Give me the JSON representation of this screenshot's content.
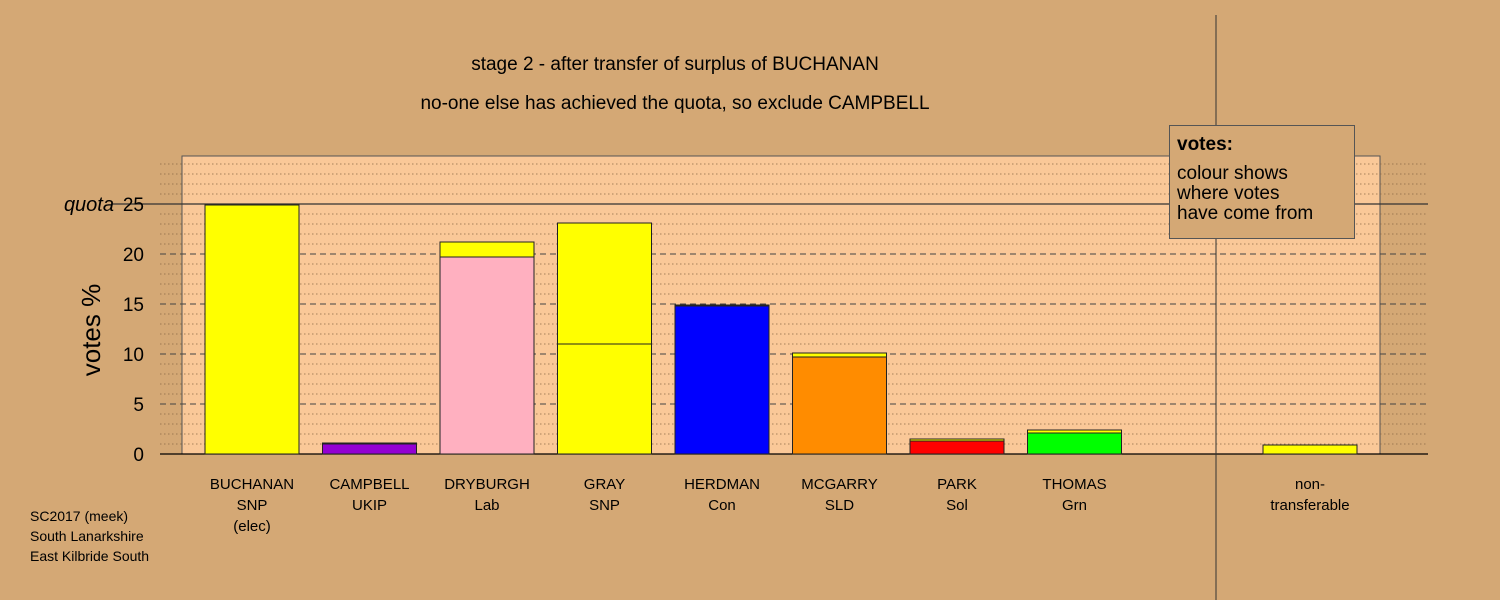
{
  "title": {
    "line1": "stage 2 - after transfer of surplus of BUCHANAN",
    "line2": "no-one else has achieved the quota, so exclude CAMPBELL"
  },
  "legend": {
    "title": "votes:",
    "body": [
      "colour shows",
      "where votes",
      "have come from"
    ]
  },
  "footer": [
    "SC2017 (meek)",
    "South Lanarkshire",
    "East Kilbride South"
  ],
  "chart_data": {
    "type": "bar",
    "stacked": true,
    "ylabel": "votes %",
    "ylim": [
      0,
      30
    ],
    "yticks": [
      0,
      5,
      10,
      15,
      20,
      25
    ],
    "quota": 25,
    "quota_label": "quota",
    "grid": "dashed major, dotted minor",
    "categories": [
      {
        "name": "BUCHANAN",
        "party": "SNP",
        "note": "(elec)"
      },
      {
        "name": "CAMPBELL",
        "party": "UKIP",
        "note": ""
      },
      {
        "name": "DRYBURGH",
        "party": "Lab",
        "note": ""
      },
      {
        "name": "GRAY",
        "party": "SNP",
        "note": ""
      },
      {
        "name": "HERDMAN",
        "party": "Con",
        "note": ""
      },
      {
        "name": "MCGARRY",
        "party": "SLD",
        "note": ""
      },
      {
        "name": "PARK",
        "party": "Sol",
        "note": ""
      },
      {
        "name": "THOMAS",
        "party": "Grn",
        "note": ""
      },
      {
        "name": "non-",
        "party": "transferable",
        "note": ""
      }
    ],
    "bars": [
      [
        {
          "value": 24.9,
          "color": "#ffff00"
        }
      ],
      [
        {
          "value": 1.0,
          "color": "#9400d3"
        },
        {
          "value": 0.1,
          "color": "#ffff00"
        }
      ],
      [
        {
          "value": 19.7,
          "color": "#ffb0c0"
        },
        {
          "value": 1.5,
          "color": "#ffff00"
        }
      ],
      [
        {
          "value": 11.0,
          "color": "#ffff00"
        },
        {
          "value": 12.1,
          "color": "#ffff00"
        }
      ],
      [
        {
          "value": 14.8,
          "color": "#0000ff"
        },
        {
          "value": 0.1,
          "color": "#ffff00"
        }
      ],
      [
        {
          "value": 9.7,
          "color": "#ff8c00"
        },
        {
          "value": 0.4,
          "color": "#ffff00"
        }
      ],
      [
        {
          "value": 1.3,
          "color": "#ff0000"
        },
        {
          "value": 0.2,
          "color": "#ffff00"
        }
      ],
      [
        {
          "value": 2.1,
          "color": "#00ff00"
        },
        {
          "value": 0.3,
          "color": "#ffff00"
        }
      ],
      [
        {
          "value": 0.9,
          "color": "#ffff00"
        }
      ]
    ],
    "colors": {
      "background": "#d4a875",
      "panel": "#fac898"
    }
  }
}
